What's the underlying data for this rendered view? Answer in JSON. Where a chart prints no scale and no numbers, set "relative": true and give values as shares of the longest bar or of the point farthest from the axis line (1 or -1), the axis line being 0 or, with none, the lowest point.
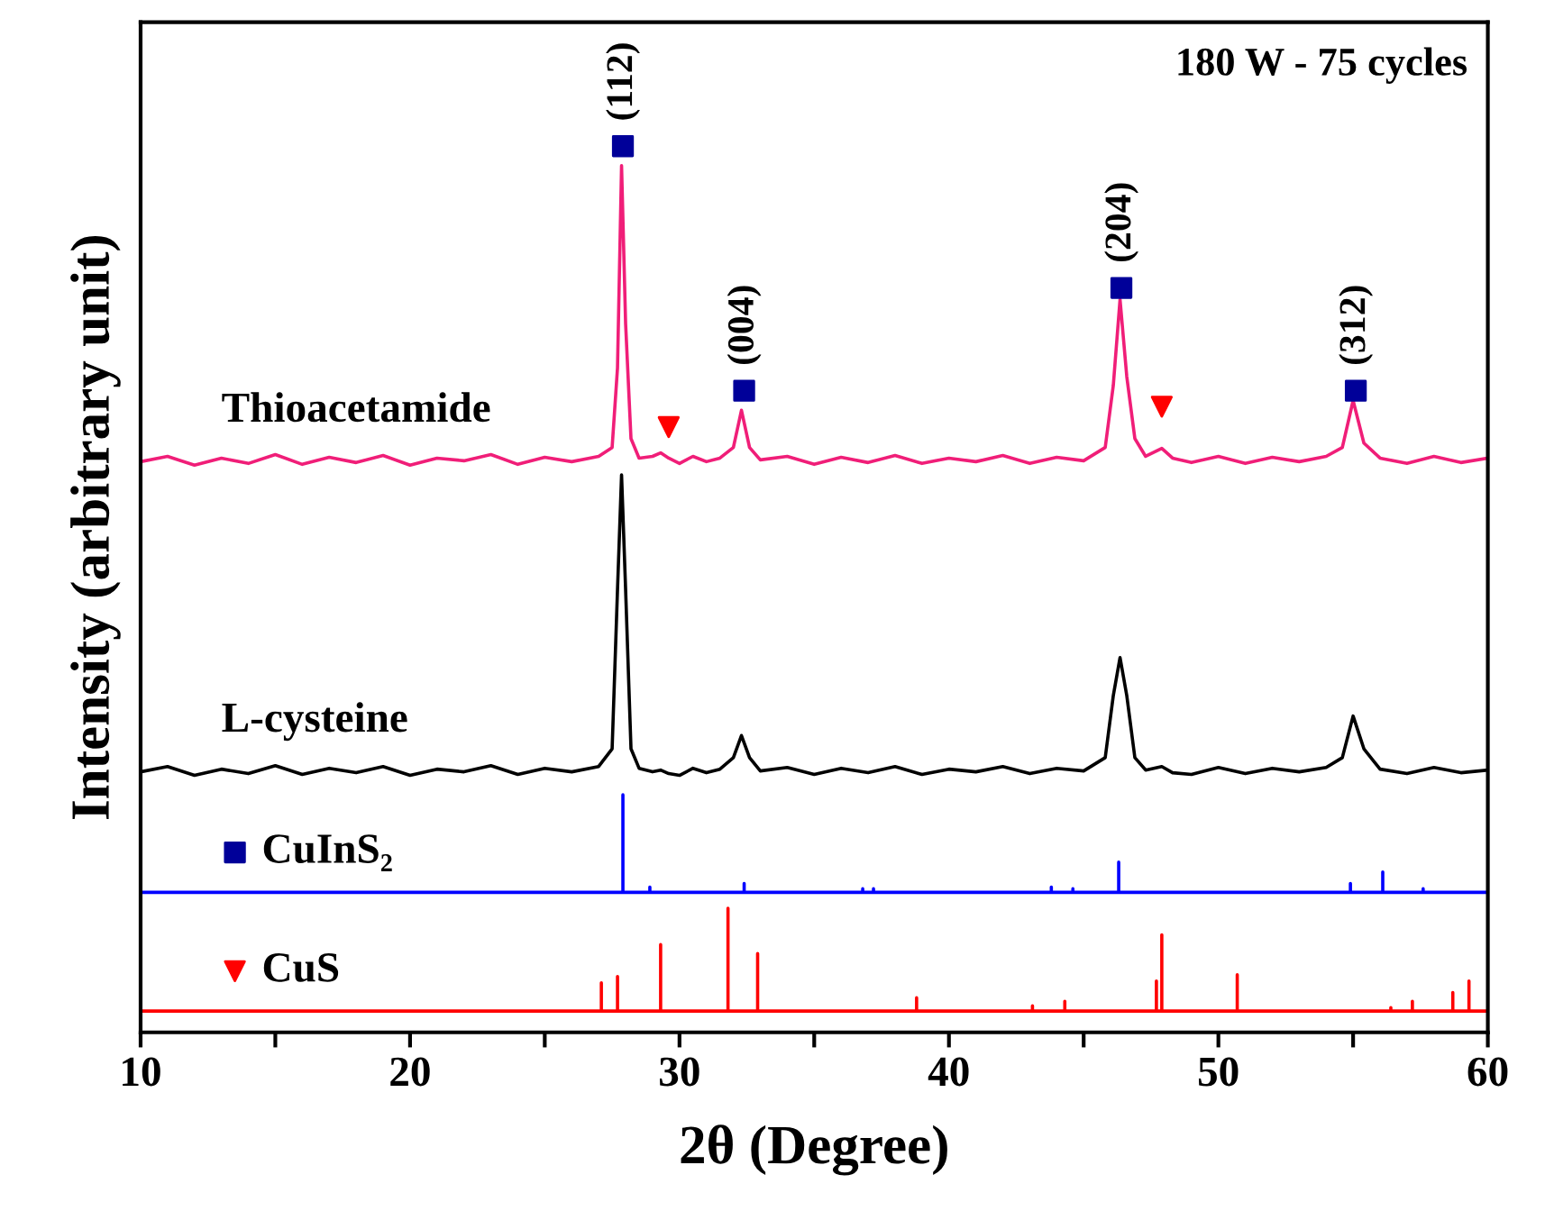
{
  "chart_data": {
    "type": "line",
    "relative": true,
    "xlabel": "2θ (Degree)",
    "ylabel": "Intensity (arbitrary unit)",
    "xlim": [
      10,
      60
    ],
    "xticks": [
      10,
      {
        "value": 15,
        "label": null
      },
      20,
      {
        "value": 25,
        "label": null
      },
      30,
      {
        "value": 35,
        "label": null
      },
      40,
      {
        "value": 45,
        "label": null
      },
      50,
      {
        "value": 55,
        "label": null
      },
      60
    ],
    "grid": false,
    "legend": "left",
    "annotations": [
      "180 W - 75 cycles",
      {
        "text": "(112)",
        "x": 27.9,
        "y": 1.0
      },
      {
        "text": "(004)",
        "x": 32.4,
        "y": 0.724
      },
      {
        "text": "(204)",
        "x": 46.4,
        "y": 0.84
      },
      {
        "text": "(312)",
        "x": 55.1,
        "y": 0.724
      }
    ],
    "series": [
      {
        "name": "Thioacetamide",
        "color": "#f01e78",
        "x": [
          10,
          11,
          12,
          13,
          14,
          15,
          16,
          17,
          18,
          19,
          20,
          21,
          22,
          23,
          24,
          25,
          26,
          27,
          27.5,
          27.7,
          27.85,
          28.0,
          28.2,
          28.5,
          29.0,
          29.3,
          29.6,
          30,
          30.5,
          31,
          31.5,
          32.0,
          32.3,
          32.6,
          33,
          34,
          35,
          36,
          37,
          38,
          39,
          40,
          41,
          42,
          43,
          44,
          45,
          45.8,
          46.1,
          46.35,
          46.6,
          46.9,
          47.3,
          47.9,
          48.3,
          49,
          50,
          51,
          52,
          53,
          54,
          54.6,
          55.0,
          55.4,
          56,
          57,
          58,
          59,
          60
        ],
        "values": [
          0.644,
          0.65,
          0.64,
          0.648,
          0.642,
          0.652,
          0.641,
          0.649,
          0.643,
          0.651,
          0.64,
          0.648,
          0.645,
          0.652,
          0.641,
          0.649,
          0.644,
          0.65,
          0.66,
          0.75,
          0.978,
          0.8,
          0.67,
          0.648,
          0.65,
          0.654,
          0.648,
          0.642,
          0.65,
          0.644,
          0.648,
          0.66,
          0.702,
          0.66,
          0.646,
          0.65,
          0.641,
          0.649,
          0.643,
          0.651,
          0.642,
          0.648,
          0.644,
          0.651,
          0.642,
          0.649,
          0.645,
          0.66,
          0.73,
          0.827,
          0.74,
          0.67,
          0.65,
          0.659,
          0.648,
          0.643,
          0.65,
          0.642,
          0.649,
          0.644,
          0.65,
          0.66,
          0.713,
          0.665,
          0.648,
          0.642,
          0.65,
          0.643,
          0.648
        ]
      },
      {
        "name": "L-cysteine",
        "color": "#000000",
        "x": [
          10,
          11,
          12,
          13,
          14,
          15,
          16,
          17,
          18,
          19,
          20,
          21,
          22,
          23,
          24,
          25,
          26,
          27,
          27.5,
          27.7,
          27.85,
          28.0,
          28.2,
          28.5,
          29.0,
          29.3,
          29.6,
          30,
          30.5,
          31,
          31.5,
          32.0,
          32.3,
          32.6,
          33,
          34,
          35,
          36,
          37,
          38,
          39,
          40,
          41,
          42,
          43,
          44,
          45,
          45.8,
          46.1,
          46.35,
          46.6,
          46.9,
          47.3,
          47.9,
          48.3,
          49,
          50,
          51,
          52,
          53,
          54,
          54.6,
          55.0,
          55.4,
          56,
          57,
          58,
          59,
          60
        ],
        "values": [
          0.294,
          0.3,
          0.29,
          0.297,
          0.292,
          0.301,
          0.291,
          0.298,
          0.293,
          0.3,
          0.29,
          0.297,
          0.294,
          0.301,
          0.291,
          0.298,
          0.294,
          0.3,
          0.32,
          0.5,
          0.629,
          0.5,
          0.32,
          0.298,
          0.294,
          0.296,
          0.292,
          0.29,
          0.298,
          0.293,
          0.297,
          0.31,
          0.335,
          0.31,
          0.295,
          0.299,
          0.291,
          0.298,
          0.293,
          0.3,
          0.291,
          0.297,
          0.294,
          0.3,
          0.292,
          0.298,
          0.295,
          0.31,
          0.38,
          0.423,
          0.38,
          0.31,
          0.296,
          0.3,
          0.293,
          0.291,
          0.299,
          0.292,
          0.298,
          0.294,
          0.299,
          0.31,
          0.357,
          0.32,
          0.297,
          0.292,
          0.299,
          0.293,
          0.296
        ]
      },
      {
        "name": "CuInS₂",
        "type": "scatter",
        "marker": "square",
        "color": "#000099",
        "x": [
          27.9,
          32.4,
          46.4,
          55.1
        ],
        "values": [
          1.0,
          0.724,
          0.84,
          0.724
        ]
      },
      {
        "color": "#0000ff",
        "x": [
          10,
          27.9,
          27.9,
          27.9,
          28.9,
          28.9,
          28.9,
          32.4,
          32.4,
          32.4,
          36.8,
          36.8,
          36.8,
          37.2,
          37.2,
          37.2,
          43.8,
          43.8,
          43.8,
          44.6,
          44.6,
          44.6,
          46.3,
          46.3,
          46.3,
          54.9,
          54.9,
          54.9,
          56.1,
          56.1,
          56.1,
          57.6,
          57.6,
          57.6,
          60
        ],
        "values": [
          0.158,
          0.158,
          0.268,
          0.158,
          0.158,
          0.164,
          0.158,
          0.158,
          0.168,
          0.158,
          0.158,
          0.162,
          0.158,
          0.158,
          0.162,
          0.158,
          0.158,
          0.164,
          0.158,
          0.158,
          0.162,
          0.158,
          0.158,
          0.192,
          0.158,
          0.158,
          0.168,
          0.158,
          0.158,
          0.181,
          0.158,
          0.158,
          0.162,
          0.158,
          0.158
        ]
      },
      {
        "name": "CuS",
        "type": "scatter",
        "marker": "triangle",
        "color": "#ff0000",
        "x": [
          29.6,
          47.9
        ],
        "values": [
          0.683,
          0.706
        ]
      },
      {
        "color": "#ff0000",
        "x": [
          10,
          27.1,
          27.1,
          27.1,
          27.7,
          27.7,
          27.7,
          29.3,
          29.3,
          29.3,
          31.8,
          31.8,
          31.8,
          32.9,
          32.9,
          32.9,
          38.8,
          38.8,
          38.8,
          43.1,
          43.1,
          43.1,
          44.3,
          44.3,
          44.3,
          47.7,
          47.7,
          47.7,
          47.9,
          47.9,
          47.9,
          50.7,
          50.7,
          50.7,
          56.4,
          56.4,
          56.4,
          57.2,
          57.2,
          57.2,
          58.7,
          58.7,
          58.7,
          59.3,
          59.3,
          59.3,
          60
        ],
        "values": [
          0.024,
          0.024,
          0.056,
          0.024,
          0.024,
          0.063,
          0.024,
          0.024,
          0.099,
          0.024,
          0.024,
          0.14,
          0.024,
          0.024,
          0.089,
          0.024,
          0.024,
          0.039,
          0.024,
          0.024,
          0.03,
          0.024,
          0.024,
          0.035,
          0.024,
          0.024,
          0.058,
          0.024,
          0.024,
          0.11,
          0.024,
          0.024,
          0.065,
          0.024,
          0.024,
          0.028,
          0.024,
          0.024,
          0.035,
          0.024,
          0.024,
          0.045,
          0.024,
          0.024,
          0.058,
          0.024,
          0.024
        ]
      }
    ]
  }
}
